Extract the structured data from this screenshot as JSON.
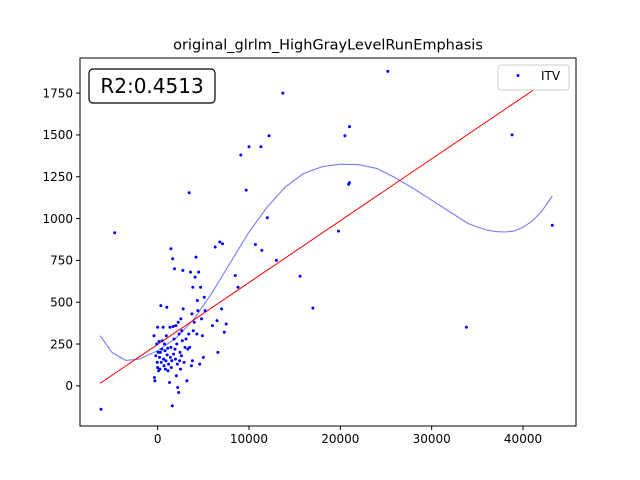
{
  "chart_data": {
    "type": "scatter",
    "title": "original_glrlm_HighGrayLevelRunEmphasis",
    "xlabel": "",
    "ylabel": "",
    "xlim": [
      -8500,
      45800
    ],
    "ylim": [
      -240,
      1960
    ],
    "x_ticks": [
      0,
      10000,
      20000,
      30000,
      40000
    ],
    "x_tick_labels": [
      "0",
      "10000",
      "20000",
      "30000",
      "40000"
    ],
    "y_ticks": [
      0,
      250,
      500,
      750,
      1000,
      1250,
      1500,
      1750
    ],
    "y_tick_labels": [
      "0",
      "250",
      "500",
      "750",
      "1000",
      "1250",
      "1500",
      "1750"
    ],
    "annotation": "R2:0.4513",
    "legend_position": "top-right",
    "colors": {
      "points": "#0000ff",
      "fit_line": "#ff0000",
      "poly_curve": "#7b7bf0"
    },
    "series": [
      {
        "name": "ITV",
        "kind": "points",
        "points": [
          [
            -6200,
            -140
          ],
          [
            -4700,
            915
          ],
          [
            -400,
            300
          ],
          [
            -350,
            50
          ],
          [
            -300,
            30
          ],
          [
            -200,
            180
          ],
          [
            -100,
            250
          ],
          [
            -50,
            140
          ],
          [
            0,
            350
          ],
          [
            0,
            110
          ],
          [
            50,
            200
          ],
          [
            100,
            90
          ],
          [
            150,
            265
          ],
          [
            200,
            170
          ],
          [
            250,
            100
          ],
          [
            300,
            200
          ],
          [
            350,
            480
          ],
          [
            400,
            140
          ],
          [
            450,
            220
          ],
          [
            500,
            270
          ],
          [
            600,
            350
          ],
          [
            650,
            160
          ],
          [
            700,
            120
          ],
          [
            750,
            250
          ],
          [
            800,
            210
          ],
          [
            850,
            100
          ],
          [
            900,
            150
          ],
          [
            950,
            300
          ],
          [
            1000,
            470
          ],
          [
            1050,
            185
          ],
          [
            1100,
            225
          ],
          [
            1150,
            90
          ],
          [
            1200,
            130
          ],
          [
            1300,
            20
          ],
          [
            1350,
            350
          ],
          [
            1400,
            170
          ],
          [
            1450,
            820
          ],
          [
            1450,
            230
          ],
          [
            1500,
            110
          ],
          [
            1550,
            150
          ],
          [
            1600,
            -120
          ],
          [
            1650,
            760
          ],
          [
            1700,
            355
          ],
          [
            1750,
            190
          ],
          [
            1800,
            280
          ],
          [
            1850,
            700
          ],
          [
            1900,
            220
          ],
          [
            1950,
            160
          ],
          [
            2000,
            360
          ],
          [
            2050,
            60
          ],
          [
            2100,
            250
          ],
          [
            2150,
            130
          ],
          [
            2200,
            -10
          ],
          [
            2250,
            380
          ],
          [
            2300,
            -40
          ],
          [
            2350,
            310
          ],
          [
            2400,
            150
          ],
          [
            2450,
            200
          ],
          [
            2500,
            100
          ],
          [
            2550,
            400
          ],
          [
            2600,
            180
          ],
          [
            2650,
            330
          ],
          [
            2700,
            270
          ],
          [
            2750,
            690
          ],
          [
            2800,
            460
          ],
          [
            2900,
            140
          ],
          [
            3000,
            230
          ],
          [
            3100,
            280
          ],
          [
            3200,
            30
          ],
          [
            3300,
            220
          ],
          [
            3400,
            310
          ],
          [
            3450,
            1155
          ],
          [
            3500,
            230
          ],
          [
            3600,
            680
          ],
          [
            3700,
            120
          ],
          [
            3750,
            430
          ],
          [
            3800,
            150
          ],
          [
            3850,
            590
          ],
          [
            3900,
            330
          ],
          [
            4000,
            380
          ],
          [
            4100,
            650
          ],
          [
            4200,
            770
          ],
          [
            4300,
            310
          ],
          [
            4350,
            510
          ],
          [
            4400,
            450
          ],
          [
            4500,
            680
          ],
          [
            4600,
            130
          ],
          [
            4700,
            590
          ],
          [
            4800,
            400
          ],
          [
            4900,
            300
          ],
          [
            5000,
            170
          ],
          [
            5100,
            530
          ],
          [
            5200,
            450
          ],
          [
            6000,
            360
          ],
          [
            6300,
            830
          ],
          [
            6500,
            390
          ],
          [
            6600,
            200
          ],
          [
            6800,
            860
          ],
          [
            7000,
            460
          ],
          [
            7100,
            850
          ],
          [
            7300,
            320
          ],
          [
            7500,
            370
          ],
          [
            8500,
            660
          ],
          [
            8800,
            590
          ],
          [
            9100,
            1380
          ],
          [
            9700,
            1170
          ],
          [
            10000,
            1430
          ],
          [
            10700,
            845
          ],
          [
            11300,
            1430
          ],
          [
            11400,
            810
          ],
          [
            12000,
            1005
          ],
          [
            12200,
            1495
          ],
          [
            13000,
            750
          ],
          [
            13700,
            1750
          ],
          [
            15600,
            655
          ],
          [
            17000,
            465
          ],
          [
            19800,
            925
          ],
          [
            20500,
            1495
          ],
          [
            20900,
            1205
          ],
          [
            21000,
            1550
          ],
          [
            21000,
            1215
          ],
          [
            25200,
            1880
          ],
          [
            33800,
            350
          ],
          [
            38800,
            1500
          ],
          [
            43200,
            960
          ]
        ]
      },
      {
        "kind": "linear_fit",
        "points": [
          [
            -6300,
            15
          ],
          [
            42800,
            1830
          ]
        ]
      },
      {
        "kind": "polynomial_curve",
        "points": [
          [
            -6300,
            300
          ],
          [
            -5000,
            200
          ],
          [
            -3500,
            152
          ],
          [
            -2000,
            160
          ],
          [
            0,
            210
          ],
          [
            2000,
            285
          ],
          [
            4000,
            400
          ],
          [
            6000,
            560
          ],
          [
            8000,
            740
          ],
          [
            10000,
            920
          ],
          [
            12000,
            1070
          ],
          [
            14000,
            1190
          ],
          [
            16000,
            1270
          ],
          [
            18000,
            1310
          ],
          [
            20000,
            1325
          ],
          [
            22000,
            1322
          ],
          [
            24000,
            1300
          ],
          [
            26000,
            1245
          ],
          [
            28000,
            1180
          ],
          [
            30000,
            1110
          ],
          [
            32000,
            1040
          ],
          [
            34000,
            970
          ],
          [
            35000,
            950
          ],
          [
            36000,
            932
          ],
          [
            37000,
            922
          ],
          [
            38000,
            920
          ],
          [
            39000,
            925
          ],
          [
            40000,
            948
          ],
          [
            41000,
            985
          ],
          [
            42000,
            1040
          ],
          [
            43200,
            1135
          ]
        ]
      }
    ]
  }
}
